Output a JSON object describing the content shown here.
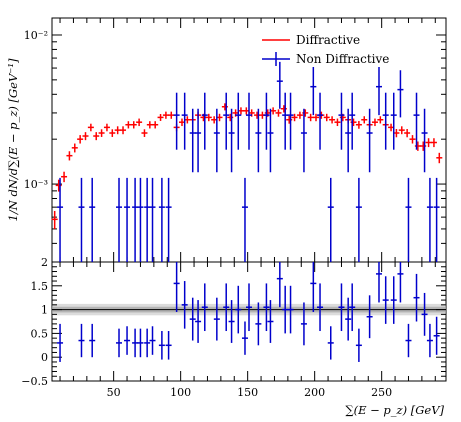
{
  "chart_data": [
    {
      "type": "scatter",
      "panel": "main",
      "title": "",
      "xlabel": "",
      "ylabel": "1/N dN/d∑(E − p_z) [GeV⁻¹]",
      "y_scale": "log",
      "xlim": [
        4,
        298
      ],
      "ylim": [
        0.0003,
        0.013
      ],
      "y_ticks": [
        {
          "value": 0.001,
          "label": "10⁻³"
        },
        {
          "value": 0.01,
          "label": "10⁻²"
        }
      ],
      "legend_position": "top-right",
      "series": [
        {
          "name": "Diffractive",
          "color": "#ff0000",
          "marker": "errorbar",
          "x": [
            6,
            9,
            13,
            17,
            21,
            25,
            29,
            33,
            37,
            41,
            45,
            49,
            53,
            57,
            61,
            65,
            69,
            73,
            77,
            81,
            85,
            89,
            93,
            97,
            101,
            105,
            109,
            113,
            117,
            121,
            125,
            129,
            133,
            137,
            141,
            145,
            149,
            153,
            157,
            161,
            165,
            169,
            173,
            177,
            181,
            185,
            189,
            193,
            197,
            201,
            205,
            209,
            213,
            217,
            221,
            225,
            229,
            233,
            237,
            241,
            245,
            249,
            253,
            257,
            261,
            265,
            269,
            273,
            277,
            281,
            285,
            289,
            293
          ],
          "y": [
            0.00058,
            0.00098,
            0.00112,
            0.00155,
            0.00175,
            0.002,
            0.0021,
            0.0024,
            0.0021,
            0.0022,
            0.0024,
            0.0022,
            0.0023,
            0.0023,
            0.0025,
            0.0025,
            0.0026,
            0.0022,
            0.0025,
            0.0025,
            0.0028,
            0.0029,
            0.0029,
            0.0024,
            0.0026,
            0.0027,
            0.0027,
            0.0029,
            0.0028,
            0.0028,
            0.0027,
            0.0028,
            0.0033,
            0.0028,
            0.003,
            0.0031,
            0.0031,
            0.003,
            0.0029,
            0.0029,
            0.003,
            0.0031,
            0.003,
            0.0032,
            0.0027,
            0.0028,
            0.0029,
            0.003,
            0.0028,
            0.0028,
            0.0029,
            0.0028,
            0.0027,
            0.0026,
            0.0028,
            0.0027,
            0.0026,
            0.0025,
            0.0027,
            0.0025,
            0.0026,
            0.0027,
            0.0025,
            0.0024,
            0.0022,
            0.0023,
            0.0022,
            0.002,
            0.0018,
            0.0018,
            0.0019,
            0.0019,
            0.0015
          ],
          "yerr": [
            8e-05,
            9e-05,
            9e-05,
            0.00011,
            0.00012,
            0.00013,
            0.00013,
            0.00014,
            0.00013,
            0.00013,
            0.00014,
            0.00013,
            0.00014,
            0.00014,
            0.00014,
            0.00014,
            0.00015,
            0.00013,
            0.00014,
            0.00014,
            0.00015,
            0.00016,
            0.00016,
            0.00014,
            0.00015,
            0.00015,
            0.00015,
            0.00016,
            0.00016,
            0.00016,
            0.00015,
            0.00016,
            0.00018,
            0.00016,
            0.00017,
            0.00017,
            0.00017,
            0.00017,
            0.00016,
            0.00016,
            0.00017,
            0.00017,
            0.00017,
            0.00018,
            0.00016,
            0.00016,
            0.00016,
            0.00017,
            0.00016,
            0.00016,
            0.00016,
            0.00016,
            0.00015,
            0.00015,
            0.00016,
            0.00015,
            0.00015,
            0.00015,
            0.00015,
            0.00015,
            0.00015,
            0.00015,
            0.00015,
            0.00014,
            0.00014,
            0.00014,
            0.00014,
            0.00013,
            0.00013,
            0.00013,
            0.00013,
            0.00013,
            0.00012
          ]
        },
        {
          "name": "Non Diffractive",
          "color": "#0000cc",
          "marker": "errorbar",
          "x": [
            10,
            26,
            34,
            54,
            60,
            66,
            70,
            75,
            79,
            86,
            91,
            97,
            103,
            109,
            113,
            118,
            127,
            134,
            138,
            143,
            148,
            151,
            158,
            164,
            167,
            174,
            178,
            182,
            192,
            199,
            204,
            212,
            220,
            225,
            228,
            233,
            241,
            248,
            253,
            259,
            264,
            270,
            276,
            282,
            286,
            291
          ],
          "y": [
            0.0007,
            0.0007,
            0.0007,
            0.0007,
            0.0007,
            0.0007,
            0.0007,
            0.0007,
            0.0007,
            0.0007,
            0.0007,
            0.0029,
            0.0029,
            0.0022,
            0.0022,
            0.0029,
            0.0022,
            0.0029,
            0.0022,
            0.0029,
            0.0007,
            0.0029,
            0.0022,
            0.0029,
            0.0022,
            0.0049,
            0.0029,
            0.0029,
            0.0022,
            0.0045,
            0.0029,
            0.0007,
            0.0029,
            0.0022,
            0.0029,
            0.0007,
            0.0022,
            0.0045,
            0.0029,
            0.0029,
            0.0043,
            0.0007,
            0.0029,
            0.0022,
            0.0007,
            0.0007
          ],
          "yerr": [
            0.0004,
            0.0004,
            0.0004,
            0.0004,
            0.0004,
            0.0004,
            0.0004,
            0.0004,
            0.0004,
            0.0004,
            0.0004,
            0.0012,
            0.0012,
            0.001,
            0.001,
            0.0012,
            0.001,
            0.0012,
            0.001,
            0.0012,
            0.0004,
            0.0012,
            0.001,
            0.0012,
            0.001,
            0.0017,
            0.0012,
            0.0012,
            0.001,
            0.0016,
            0.0012,
            0.0004,
            0.0012,
            0.001,
            0.0012,
            0.0004,
            0.001,
            0.0016,
            0.0012,
            0.0012,
            0.0015,
            0.0004,
            0.0012,
            0.001,
            0.0004,
            0.0004
          ]
        }
      ]
    },
    {
      "type": "scatter",
      "panel": "ratio",
      "title": "",
      "xlabel": "∑(E − p_z) [GeV]",
      "ylabel": "",
      "xlim": [
        4,
        298
      ],
      "ylim": [
        -0.5,
        2
      ],
      "x_ticks": [
        50,
        100,
        150,
        200,
        250
      ],
      "y_ticks": [
        -0.5,
        0,
        0.5,
        1,
        1.5,
        2
      ],
      "y_tick_labels": [
        "−0.5",
        "0",
        "0.5",
        "1",
        "1.5",
        "2"
      ],
      "reference_line": 1,
      "band_halfwidth": 0.12,
      "series": [
        {
          "name": "",
          "color": "#0000cc",
          "x": [
            10,
            26,
            34,
            54,
            60,
            66,
            70,
            75,
            79,
            86,
            91,
            97,
            103,
            109,
            113,
            118,
            127,
            134,
            138,
            143,
            148,
            151,
            158,
            164,
            167,
            174,
            178,
            182,
            192,
            199,
            204,
            212,
            220,
            225,
            228,
            233,
            241,
            248,
            253,
            259,
            264,
            270,
            276,
            282,
            286,
            291
          ],
          "y": [
            0.3,
            0.35,
            0.35,
            0.3,
            0.35,
            0.3,
            0.3,
            0.3,
            0.35,
            0.25,
            0.25,
            1.55,
            1.1,
            0.8,
            0.75,
            1.05,
            0.8,
            1.05,
            0.75,
            1.0,
            0.4,
            1.05,
            0.7,
            1.05,
            0.75,
            1.65,
            1.0,
            1.0,
            0.7,
            1.55,
            1.05,
            0.3,
            1.05,
            0.8,
            1.05,
            0.25,
            0.85,
            1.75,
            1.2,
            1.2,
            1.75,
            0.35,
            1.25,
            0.9,
            0.35,
            0.45
          ],
          "yerr": [
            0.4,
            0.35,
            0.35,
            0.3,
            0.3,
            0.3,
            0.3,
            0.3,
            0.3,
            0.3,
            0.3,
            0.6,
            0.5,
            0.45,
            0.45,
            0.5,
            0.45,
            0.5,
            0.45,
            0.5,
            0.35,
            0.5,
            0.45,
            0.5,
            0.45,
            0.6,
            0.5,
            0.5,
            0.45,
            0.6,
            0.5,
            0.35,
            0.5,
            0.45,
            0.5,
            0.35,
            0.45,
            0.6,
            0.5,
            0.5,
            0.6,
            0.35,
            0.5,
            0.45,
            0.35,
            0.4
          ]
        }
      ]
    }
  ]
}
